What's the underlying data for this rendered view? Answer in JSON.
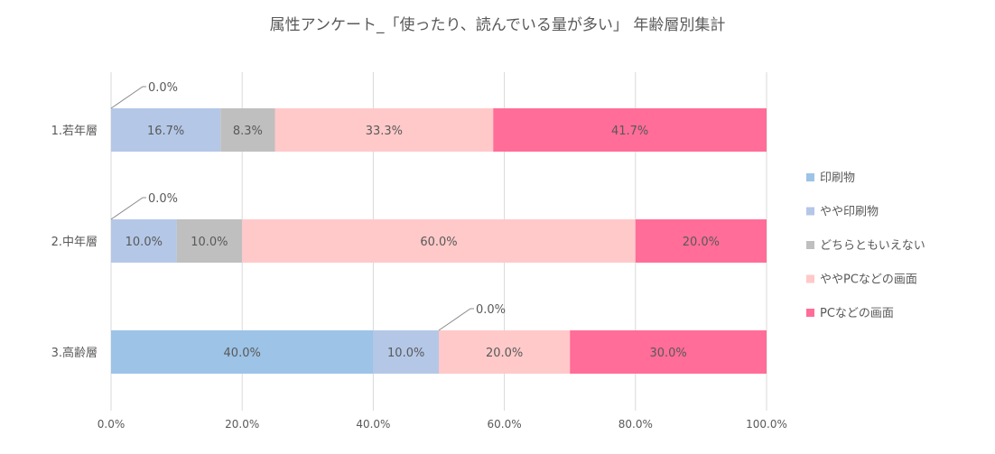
{
  "chart_data": {
    "type": "bar",
    "orientation": "horizontal",
    "stacked": "percent",
    "title": "属性アンケート_「使ったり、読んでいる量が多い」 年齢層別集計",
    "categories": [
      "1.若年層",
      "2.中年層",
      "3.高齢層"
    ],
    "series": [
      {
        "name": "印刷物",
        "color": "#9dc3e6",
        "values": [
          0.0,
          0.0,
          40.0
        ],
        "labels": [
          "0.0%",
          "0.0%",
          "40.0%"
        ]
      },
      {
        "name": "やや印刷物",
        "color": "#b4c7e7",
        "values": [
          16.7,
          10.0,
          10.0
        ],
        "labels": [
          "16.7%",
          "10.0%",
          "10.0%"
        ]
      },
      {
        "name": "どちらともいえない",
        "color": "#bfbfbf",
        "values": [
          8.3,
          10.0,
          0.0
        ],
        "labels": [
          "8.3%",
          "10.0%",
          "0.0%"
        ]
      },
      {
        "name": "ややPCなどの画面",
        "color": "#ffc9c9",
        "values": [
          33.3,
          60.0,
          20.0
        ],
        "labels": [
          "33.3%",
          "60.0%",
          "20.0%"
        ]
      },
      {
        "name": "PCなどの画面",
        "color": "#ff6d98",
        "values": [
          41.7,
          20.0,
          30.0
        ],
        "labels": [
          "41.7%",
          "20.0%",
          "30.0%"
        ]
      }
    ],
    "x_ticks": [
      "0.0%",
      "20.0%",
      "40.0%",
      "60.0%",
      "80.0%",
      "100.0%"
    ],
    "xlim": [
      0,
      100
    ],
    "grid": true,
    "legend_position": "right"
  }
}
